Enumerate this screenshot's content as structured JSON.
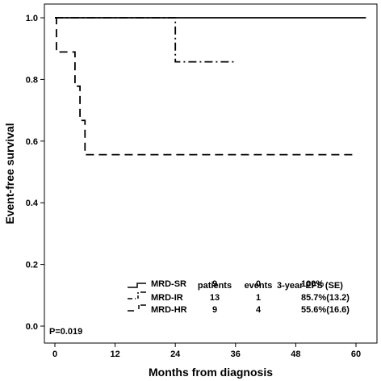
{
  "chart_data": {
    "type": "line",
    "xlabel": "Months from diagnosis",
    "ylabel": "Event-free survival",
    "xlim": [
      0,
      60
    ],
    "ylim": [
      0.0,
      1.0
    ],
    "x_ticks": [
      "0",
      "12",
      "24",
      "36",
      "48",
      "60"
    ],
    "y_ticks": [
      "0.0",
      "0.2",
      "0.4",
      "0.6",
      "0.8",
      "1.0"
    ],
    "grid": false,
    "legend_placement": "bottom-right",
    "series": [
      {
        "name": "MRD-SR",
        "line_style": "solid",
        "steps": [
          [
            0,
            1.0
          ],
          [
            62,
            1.0
          ]
        ]
      },
      {
        "name": "MRD-IR",
        "line_style": "dash-dot",
        "steps": [
          [
            0,
            1.0
          ],
          [
            24,
            1.0
          ],
          [
            24,
            0.857
          ],
          [
            36,
            0.857
          ]
        ]
      },
      {
        "name": "MRD-HR",
        "line_style": "dashed",
        "steps": [
          [
            0,
            1.0
          ],
          [
            0.3,
            1.0
          ],
          [
            0.3,
            0.889
          ],
          [
            4,
            0.889
          ],
          [
            4,
            0.778
          ],
          [
            5,
            0.778
          ],
          [
            5,
            0.667
          ],
          [
            6,
            0.667
          ],
          [
            6,
            0.556
          ],
          [
            60,
            0.556
          ]
        ]
      }
    ],
    "table": {
      "headers": [
        "patients",
        "events",
        "3-year EFS (SE)"
      ],
      "rows": [
        {
          "group": "MRD-SR",
          "patients": "9",
          "events": "0",
          "efs": "100%"
        },
        {
          "group": "MRD-IR",
          "patients": "13",
          "events": "1",
          "efs": "85.7%(13.2)"
        },
        {
          "group": "MRD-HR",
          "patients": "9",
          "events": "4",
          "efs": "55.6%(16.6)"
        }
      ]
    },
    "annotation": "P=0.019"
  }
}
